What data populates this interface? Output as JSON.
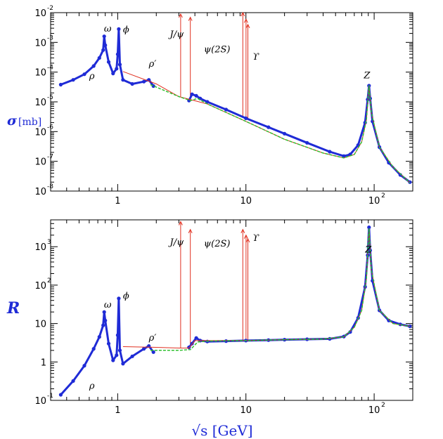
{
  "chart_data": {
    "type": "line",
    "x_scale": "log",
    "y_scale": "log",
    "xlim": [
      0.3,
      200
    ],
    "xlabel": "√s [GeV]",
    "x_ticks": [
      {
        "value": 1,
        "label": "1",
        "exp": ""
      },
      {
        "value": 10,
        "label": "10",
        "exp": ""
      },
      {
        "value": 100,
        "label": "10",
        "exp": "2"
      }
    ],
    "colors": {
      "data": "#1f2bd6",
      "model": "#e03020",
      "fit": "#30c030",
      "axis_title": "#1f2bd6"
    },
    "panels": [
      {
        "name": "sigma",
        "ylabel_symbol": "σ",
        "ylabel_unit": "[mb]",
        "ylim": [
          1e-08,
          0.01
        ],
        "y_ticks": [
          {
            "value": 1e-08,
            "label": "10",
            "exp": "-8"
          },
          {
            "value": 1e-07,
            "label": "10",
            "exp": "-7"
          },
          {
            "value": 1e-06,
            "label": "10",
            "exp": "-6"
          },
          {
            "value": 1e-05,
            "label": "10",
            "exp": "-5"
          },
          {
            "value": 0.0001,
            "label": "10",
            "exp": "-4"
          },
          {
            "value": 0.001,
            "label": "10",
            "exp": "-3"
          },
          {
            "value": 0.01,
            "label": "10",
            "exp": "-2"
          }
        ],
        "series": [
          {
            "role": "data",
            "points": [
              [
                0.36,
                3.8e-05
              ],
              [
                0.45,
                5.5e-05
              ],
              [
                0.55,
                8.5e-05
              ],
              [
                0.65,
                0.00016
              ],
              [
                0.72,
                0.0003
              ],
              [
                0.77,
                0.00055
              ],
              [
                0.785,
                0.0016
              ],
              [
                0.8,
                0.0008
              ],
              [
                0.85,
                0.00022
              ],
              [
                0.92,
                9e-05
              ],
              [
                0.98,
                0.00013
              ],
              [
                1.0,
                0.0004
              ],
              [
                1.02,
                0.0028
              ],
              [
                1.04,
                0.00018
              ],
              [
                1.1,
                5.5e-05
              ],
              [
                1.3,
                4e-05
              ],
              [
                1.6,
                4.8e-05
              ],
              [
                1.75,
                5.5e-05
              ],
              [
                1.9,
                3.4e-05
              ]
            ]
          },
          {
            "role": "data",
            "points": [
              [
                3.6,
                1.1e-05
              ],
              [
                3.8,
                1.8e-05
              ],
              [
                4.1,
                1.6e-05
              ],
              [
                4.4,
                1.3e-05
              ],
              [
                5.0,
                1e-05
              ],
              [
                7.0,
                5.5e-06
              ],
              [
                10.0,
                2.8e-06
              ],
              [
                15.0,
                1.4e-06
              ],
              [
                20.0,
                8.5e-07
              ],
              [
                30.0,
                4.2e-07
              ],
              [
                45.0,
                2.1e-07
              ],
              [
                58.0,
                1.5e-07
              ],
              [
                65.0,
                1.7e-07
              ],
              [
                75.0,
                3.5e-07
              ],
              [
                85.0,
                2e-06
              ],
              [
                89.0,
                1.2e-05
              ],
              [
                91.2,
                3.5e-05
              ],
              [
                93.0,
                1.3e-05
              ],
              [
                97.0,
                2.2e-06
              ],
              [
                110.0,
                3e-07
              ],
              [
                130.0,
                9e-08
              ],
              [
                160.0,
                3.5e-08
              ],
              [
                190.0,
                2e-08
              ]
            ]
          },
          {
            "role": "model",
            "points": [
              [
                1.1,
                0.000105
              ],
              [
                2.0,
                4e-05
              ],
              [
                3.0,
                1.5e-05
              ],
              [
                5.0,
                8.5e-06
              ],
              [
                10.0,
                2.2e-06
              ],
              [
                20.0,
                5.5e-07
              ],
              [
                40.0,
                1.9e-07
              ],
              [
                58.0,
                1.3e-07
              ],
              [
                70.0,
                1.7e-07
              ],
              [
                80.0,
                4.5e-07
              ],
              [
                87.0,
                2.5e-06
              ],
              [
                91.2,
                3.6e-05
              ],
              [
                95.0,
                4.5e-06
              ],
              [
                110.0,
                3e-07
              ],
              [
                140.0,
                6.5e-08
              ],
              [
                190.0,
                1.9e-08
              ]
            ]
          },
          {
            "role": "fit",
            "points": [
              [
                1.8,
                3.8e-05
              ],
              [
                3.0,
                1.5e-05
              ],
              [
                3.7,
                1.1e-05
              ],
              [
                4.2,
                1.3e-05
              ],
              [
                5.0,
                8.5e-06
              ],
              [
                10.0,
                2.2e-06
              ],
              [
                20.0,
                5.5e-07
              ],
              [
                40.0,
                1.9e-07
              ],
              [
                58.0,
                1.3e-07
              ],
              [
                70.0,
                1.7e-07
              ],
              [
                80.0,
                4.5e-07
              ],
              [
                87.0,
                2.5e-06
              ],
              [
                91.2,
                3.6e-05
              ],
              [
                95.0,
                4.5e-06
              ],
              [
                110.0,
                3e-07
              ],
              [
                140.0,
                6.5e-08
              ],
              [
                190.0,
                1.9e-08
              ]
            ]
          }
        ],
        "spikes": [
          {
            "x": 3.097,
            "y0": 1.5e-05,
            "y1": 0.009
          },
          {
            "x": 3.686,
            "y0": 1.2e-05,
            "y1": 0.007
          },
          {
            "x": 9.46,
            "y0": 3e-06,
            "y1": 0.01
          },
          {
            "x": 10.02,
            "y0": 2.8e-06,
            "y1": 0.006
          },
          {
            "x": 10.36,
            "y0": 2.6e-06,
            "y1": 0.004
          }
        ],
        "annotations": [
          {
            "text": "ω",
            "x": 0.782,
            "y": 0.0023
          },
          {
            "text": "ϕ",
            "x": 1.1,
            "y": 0.0021
          },
          {
            "text": "J/ψ",
            "x": 2.55,
            "y": 0.0015
          },
          {
            "text": "ρ′",
            "x": 1.75,
            "y": 0.00015
          },
          {
            "text": "ψ(2S)",
            "x": 4.7,
            "y": 0.00046
          },
          {
            "text": "ϒ",
            "x": 11.3,
            "y": 0.00026
          },
          {
            "text": "ρ",
            "x": 0.6,
            "y": 5.9e-05
          },
          {
            "text": "Z",
            "x": 83,
            "y": 6.2e-05
          }
        ]
      },
      {
        "name": "R",
        "ylabel_symbol": "R",
        "ylabel_unit": "",
        "ylim": [
          0.1,
          5000
        ],
        "y_ticks": [
          {
            "value": 0.1,
            "label": "10",
            "exp": "-1"
          },
          {
            "value": 1,
            "label": "1",
            "exp": ""
          },
          {
            "value": 10,
            "label": "10",
            "exp": ""
          },
          {
            "value": 100,
            "label": "10",
            "exp": "2"
          },
          {
            "value": 1000,
            "label": "10",
            "exp": "3"
          }
        ],
        "series": [
          {
            "role": "data",
            "points": [
              [
                0.36,
                0.14
              ],
              [
                0.45,
                0.32
              ],
              [
                0.55,
                0.8
              ],
              [
                0.65,
                2.2
              ],
              [
                0.72,
                4.5
              ],
              [
                0.77,
                9.0
              ],
              [
                0.785,
                20
              ],
              [
                0.8,
                12
              ],
              [
                0.85,
                3.0
              ],
              [
                0.92,
                1.1
              ],
              [
                0.98,
                1.5
              ],
              [
                1.0,
                5.0
              ],
              [
                1.02,
                45
              ],
              [
                1.04,
                2.0
              ],
              [
                1.1,
                0.9
              ],
              [
                1.3,
                1.4
              ],
              [
                1.6,
                2.2
              ],
              [
                1.75,
                2.6
              ],
              [
                1.9,
                1.8
              ]
            ]
          },
          {
            "role": "data",
            "points": [
              [
                3.6,
                2.4
              ],
              [
                3.8,
                3.0
              ],
              [
                4.1,
                4.2
              ],
              [
                4.4,
                3.6
              ],
              [
                5.0,
                3.4
              ],
              [
                7.0,
                3.5
              ],
              [
                10.0,
                3.6
              ],
              [
                15.0,
                3.7
              ],
              [
                20.0,
                3.8
              ],
              [
                30.0,
                3.9
              ],
              [
                45.0,
                4.0
              ],
              [
                58.0,
                4.6
              ],
              [
                65.0,
                6.0
              ],
              [
                75.0,
                14
              ],
              [
                85.0,
                90
              ],
              [
                89.0,
                600
              ],
              [
                91.2,
                3200
              ],
              [
                93.0,
                800
              ],
              [
                97.0,
                130
              ],
              [
                110.0,
                22
              ],
              [
                130.0,
                12
              ],
              [
                160.0,
                9.5
              ],
              [
                190.0,
                8.5
              ]
            ]
          },
          {
            "role": "model",
            "points": [
              [
                1.1,
                2.5
              ],
              [
                2.0,
                2.4
              ],
              [
                3.0,
                2.3
              ],
              [
                3.6,
                2.3
              ],
              [
                4.0,
                3.6
              ],
              [
                10.0,
                3.6
              ],
              [
                20.0,
                3.8
              ],
              [
                40.0,
                3.95
              ],
              [
                58.0,
                4.5
              ],
              [
                70.0,
                8.0
              ],
              [
                80.0,
                22
              ],
              [
                87.0,
                150
              ],
              [
                91.2,
                3000
              ],
              [
                95.0,
                250
              ],
              [
                110.0,
                22
              ],
              [
                140.0,
                10
              ],
              [
                190.0,
                8.5
              ]
            ]
          },
          {
            "role": "fit",
            "points": [
              [
                1.8,
                2.0
              ],
              [
                3.0,
                2.0
              ],
              [
                3.7,
                2.1
              ],
              [
                4.2,
                3.3
              ],
              [
                5.0,
                3.5
              ],
              [
                10.0,
                3.6
              ],
              [
                20.0,
                3.8
              ],
              [
                40.0,
                3.95
              ],
              [
                58.0,
                4.5
              ],
              [
                70.0,
                8.0
              ],
              [
                80.0,
                22
              ],
              [
                87.0,
                150
              ],
              [
                91.2,
                3000
              ],
              [
                95.0,
                250
              ],
              [
                110.0,
                22
              ],
              [
                140.0,
                10
              ],
              [
                190.0,
                8.5
              ]
            ]
          }
        ],
        "spikes": [
          {
            "x": 3.097,
            "y0": 2.3,
            "y1": 4500
          },
          {
            "x": 3.686,
            "y0": 2.4,
            "y1": 2800
          },
          {
            "x": 9.46,
            "y0": 3.6,
            "y1": 2800
          },
          {
            "x": 10.02,
            "y0": 3.6,
            "y1": 2000
          },
          {
            "x": 10.36,
            "y0": 3.6,
            "y1": 1600
          }
        ],
        "annotations": [
          {
            "text": "ω",
            "x": 0.782,
            "y": 26
          },
          {
            "text": "ϕ",
            "x": 1.1,
            "y": 44
          },
          {
            "text": "J/ψ",
            "x": 2.55,
            "y": 1100
          },
          {
            "text": "ρ′",
            "x": 1.75,
            "y": 3.6
          },
          {
            "text": "ψ(2S)",
            "x": 4.7,
            "y": 1000
          },
          {
            "text": "ϒ",
            "x": 11.3,
            "y": 1400
          },
          {
            "text": "ρ",
            "x": 0.6,
            "y": 0.2
          },
          {
            "text": "Z",
            "x": 85,
            "y": 700
          }
        ]
      }
    ]
  }
}
